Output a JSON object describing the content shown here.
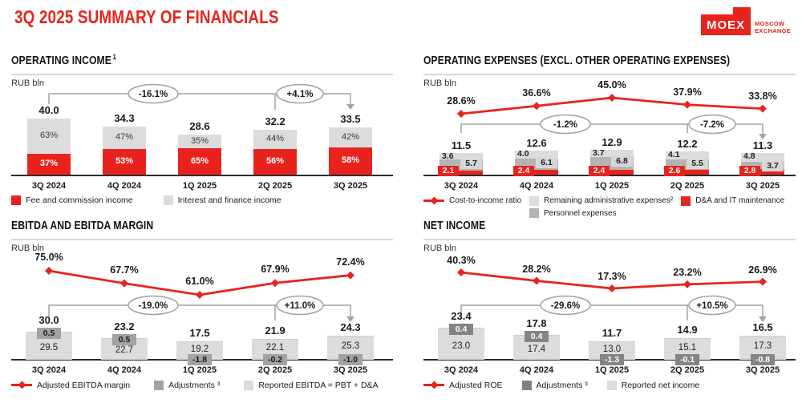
{
  "page_title": "3Q 2025 SUMMARY OF FINANCIALS",
  "logo": {
    "name": "MOEX",
    "words": [
      "MOSCOW",
      "EXCHANGE"
    ]
  },
  "colors": {
    "red": "#e8231d",
    "light_gray": "#dcdcdc",
    "mid_gray": "#b4b4b4",
    "dark_gray_badge": "#a2a2a2",
    "darker_gray_badge": "#848484",
    "bracket_gray": "#a2a2a2",
    "text": "#1a1a1a"
  },
  "chart_data": [
    {
      "id": "operating-income",
      "type": "bar",
      "title": "OPERATING INCOME",
      "title_sup": "1",
      "unit": "RUB bln",
      "categories": [
        "3Q 2024",
        "4Q 2024",
        "1Q 2025",
        "2Q 2025",
        "3Q 2025"
      ],
      "values": [
        40.0,
        34.3,
        28.6,
        32.2,
        33.5
      ],
      "totals": [
        "40.0",
        "34.3",
        "28.6",
        "32.2",
        "33.5"
      ],
      "series": [
        {
          "name": "Fee and commission income",
          "color": "red",
          "share_pct": [
            37,
            53,
            65,
            56,
            58
          ],
          "labels": [
            "37%",
            "53%",
            "65%",
            "56%",
            "58%"
          ]
        },
        {
          "name": "Interest and finance income",
          "color": "light_gray",
          "share_pct": [
            63,
            47,
            35,
            44,
            42
          ],
          "labels": [
            "63%",
            "47%",
            "35%",
            "44%",
            "42%"
          ]
        }
      ],
      "bracket": {
        "span_label": "-16.1%",
        "last_label": "+4.1%"
      },
      "legend_rows": [
        [
          {
            "sw": "red",
            "label": "Fee and commission income"
          },
          {
            "sw": "light",
            "label": "Interest and finance income"
          }
        ]
      ]
    },
    {
      "id": "operating-expenses",
      "type": "bar+line",
      "title": "OPERATING EXPENSES (EXCL. OTHER OPERATING EXPENSES)",
      "unit": "RUB bln",
      "categories": [
        "3Q 2024",
        "4Q 2024",
        "1Q 2025",
        "2Q 2025",
        "3Q 2025"
      ],
      "totals": [
        "11.5",
        "12.6",
        "12.9",
        "12.2",
        "11.3"
      ],
      "values": [
        11.5,
        12.6,
        12.9,
        12.2,
        11.3
      ],
      "line": {
        "name": "Cost-to-income ratio",
        "values": [
          28.6,
          36.6,
          45.0,
          37.9,
          33.8
        ],
        "labels": [
          "28.6%",
          "36.6%",
          "45.0%",
          "37.9%",
          "33.8%"
        ]
      },
      "stacks": {
        "admin": {
          "name": "Remaining administrative expenses²",
          "values": [
            3.6,
            4.0,
            3.7,
            4.1,
            4.8
          ],
          "labels": [
            "3.6",
            "4.0",
            "3.7",
            "4.1",
            "4.8"
          ]
        },
        "personnel": {
          "name": "Personnel expenses",
          "values": [
            5.7,
            6.1,
            6.8,
            5.5,
            3.7
          ],
          "labels": [
            "5.7",
            "6.1",
            "6.8",
            "5.5",
            "3.7"
          ]
        },
        "da": {
          "name": "D&A and IT maintenance",
          "values": [
            2.1,
            2.4,
            2.4,
            2.6,
            2.8
          ],
          "labels": [
            "2.1",
            "2.4",
            "2.4",
            "2.6",
            "2.8"
          ]
        }
      },
      "bracket": {
        "span_label": "-1.2%",
        "last_label": "-7.2%"
      },
      "legend_rows": [
        [
          {
            "sw": "line",
            "label": "Cost-to-income ratio"
          },
          {
            "sw": "light",
            "label": "Remaining administrative expenses²"
          },
          {
            "sw": "red",
            "label": "D&A and IT maintenance"
          }
        ],
        [
          {
            "sw": "mid",
            "label": "Personnel expenses"
          }
        ]
      ]
    },
    {
      "id": "ebitda",
      "type": "bar+line",
      "title": "EBITDA AND EBITDA MARGIN",
      "unit": "RUB bln",
      "categories": [
        "3Q 2024",
        "4Q 2024",
        "1Q 2025",
        "2Q 2025",
        "3Q 2025"
      ],
      "totals": [
        "30.0",
        "23.2",
        "17.5",
        "21.9",
        "24.3"
      ],
      "values": [
        30.0,
        23.2,
        17.5,
        21.9,
        24.3
      ],
      "line": {
        "name": "Adjusted EBITDA margin",
        "values": [
          75.0,
          67.7,
          61.0,
          67.9,
          72.4
        ],
        "labels": [
          "75.0%",
          "67.7%",
          "61.0%",
          "67.9%",
          "72.4%"
        ]
      },
      "reported": {
        "name": "Reported EBITDA = PBT + D&A",
        "values": [
          29.5,
          22.7,
          19.2,
          22.1,
          25.3
        ],
        "labels": [
          "29.5",
          "22.7",
          "19.2",
          "22.1",
          "25.3"
        ]
      },
      "adjustments": {
        "name": "Adjustments ³",
        "values": [
          0.5,
          0.5,
          -1.8,
          -0.2,
          -1.0
        ],
        "labels": [
          "0.5",
          "0.5",
          "-1.8",
          "-0.2",
          "-1.0"
        ]
      },
      "bracket": {
        "span_label": "-19.0%",
        "last_label": "+11.0%"
      },
      "legend_rows": [
        [
          {
            "sw": "line",
            "label": "Adjusted EBITDA margin"
          },
          {
            "sw": "gray3",
            "label": "Adjustments ³"
          },
          {
            "sw": "light",
            "label": "Reported EBITDA = PBT + D&A"
          }
        ]
      ]
    },
    {
      "id": "net-income",
      "type": "bar+line",
      "title": "NET INCOME",
      "unit": "RUB bln",
      "categories": [
        "3Q 2024",
        "4Q 2024",
        "1Q 2025",
        "2Q 2025",
        "3Q 2025"
      ],
      "totals": [
        "23.4",
        "17.8",
        "11.7",
        "14.9",
        "16.5"
      ],
      "values": [
        23.4,
        17.8,
        11.7,
        14.9,
        16.5
      ],
      "line": {
        "name": "Adjusted ROE",
        "values": [
          40.3,
          28.2,
          17.3,
          23.2,
          26.9
        ],
        "labels": [
          "40.3%",
          "28.2%",
          "17.3%",
          "23.2%",
          "26.9%"
        ]
      },
      "reported": {
        "name": "Reported net income",
        "values": [
          23.0,
          17.4,
          13.0,
          15.1,
          17.3
        ],
        "labels": [
          "23.0",
          "17.4",
          "13.0",
          "15.1",
          "17.3"
        ]
      },
      "adjustments": {
        "name": "Adjustments ³",
        "values": [
          0.4,
          0.4,
          -1.3,
          -0.1,
          -0.8
        ],
        "labels": [
          "0.4",
          "0.4",
          "-1.3",
          "-0.1",
          "-0.8"
        ]
      },
      "bracket": {
        "span_label": "-29.6%",
        "last_label": "+10.5%"
      },
      "legend_rows": [
        [
          {
            "sw": "line",
            "label": "Adjusted ROE"
          },
          {
            "sw": "gray4",
            "label": "Adjustments ³"
          },
          {
            "sw": "light",
            "label": "Reported net income"
          }
        ]
      ]
    }
  ]
}
